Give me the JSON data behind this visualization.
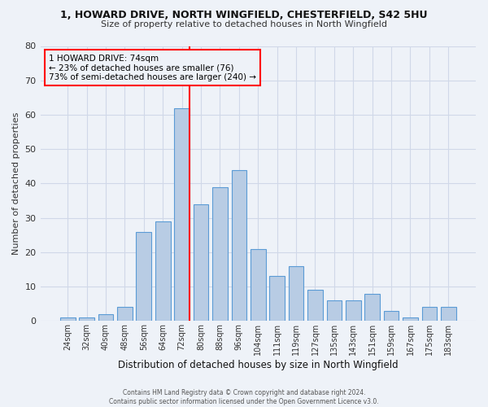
{
  "title_line1": "1, HOWARD DRIVE, NORTH WINGFIELD, CHESTERFIELD, S42 5HU",
  "title_line2": "Size of property relative to detached houses in North Wingfield",
  "xlabel": "Distribution of detached houses by size in North Wingfield",
  "ylabel": "Number of detached properties",
  "bar_labels": [
    "24sqm",
    "32sqm",
    "40sqm",
    "48sqm",
    "56sqm",
    "64sqm",
    "72sqm",
    "80sqm",
    "88sqm",
    "96sqm",
    "104sqm",
    "111sqm",
    "119sqm",
    "127sqm",
    "135sqm",
    "143sqm",
    "151sqm",
    "159sqm",
    "167sqm",
    "175sqm",
    "183sqm"
  ],
  "bar_values": [
    1,
    1,
    2,
    4,
    26,
    29,
    62,
    34,
    39,
    44,
    21,
    13,
    16,
    9,
    6,
    6,
    8,
    3,
    1,
    4,
    4
  ],
  "bar_color": "#b8cce4",
  "bar_edge_color": "#5b9bd5",
  "vline_x_index": 6,
  "vline_color": "#ff0000",
  "annotation_title": "1 HOWARD DRIVE: 74sqm",
  "annotation_line1": "← 23% of detached houses are smaller (76)",
  "annotation_line2": "73% of semi-detached houses are larger (240) →",
  "annotation_box_color": "#ff0000",
  "ylim": [
    0,
    80
  ],
  "yticks": [
    0,
    10,
    20,
    30,
    40,
    50,
    60,
    70,
    80
  ],
  "grid_color": "#d0d8e8",
  "bg_color": "#eef2f8",
  "footnote_line1": "Contains HM Land Registry data © Crown copyright and database right 2024.",
  "footnote_line2": "Contains public sector information licensed under the Open Government Licence v3.0."
}
